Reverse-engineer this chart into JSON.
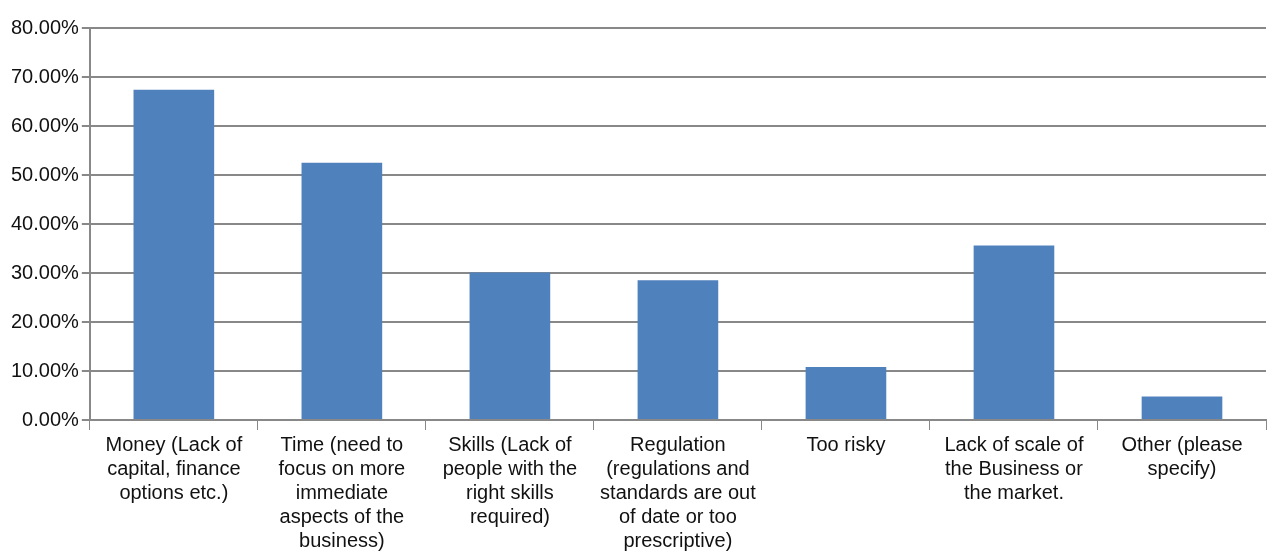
{
  "chart_data": {
    "type": "bar",
    "categories": [
      "Money (Lack of capital, finance options etc.)",
      "Time (need to focus on more immediate aspects of the business)",
      "Skills (Lack of people with the right skills required)",
      "Regulation (regulations and standards are out of date or too prescriptive)",
      "Too risky",
      "Lack of scale of the Business or the market.",
      "Other (please specify)"
    ],
    "values": [
      67.4,
      52.5,
      30.1,
      28.5,
      10.8,
      35.6,
      4.8
    ],
    "color": "#4f81bd",
    "ylim": [
      0,
      80
    ],
    "yticks": [
      {
        "value": 0,
        "label": "0.00%"
      },
      {
        "value": 10,
        "label": "10.00%"
      },
      {
        "value": 20,
        "label": "20.00%"
      },
      {
        "value": 30,
        "label": "30.00%"
      },
      {
        "value": 40,
        "label": "40.00%"
      },
      {
        "value": 50,
        "label": "50.00%"
      },
      {
        "value": 60,
        "label": "60.00%"
      },
      {
        "value": 70,
        "label": "70.00%"
      },
      {
        "value": 80,
        "label": "80.00%"
      }
    ],
    "grid": "y"
  }
}
